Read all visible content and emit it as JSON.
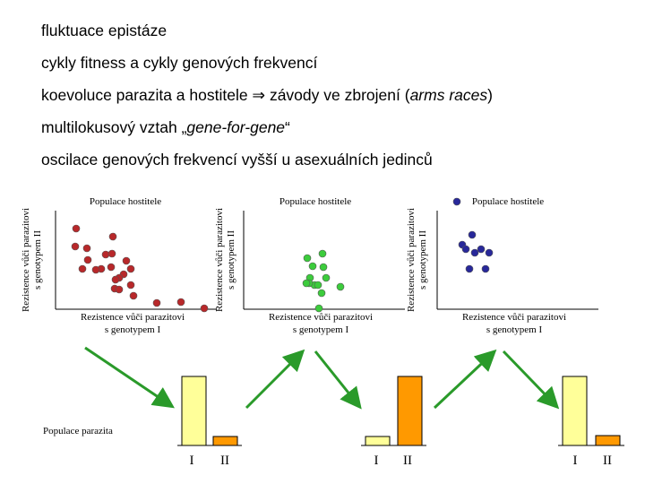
{
  "bullets": [
    [
      "fluktuace epistáze"
    ],
    [
      "cykly fitness a cykly genových frekvencí"
    ],
    [
      "koevoluce parazita a hostitele ⇒ závody ve zbrojení (",
      "arms races",
      ")"
    ],
    [
      "multilokusový vztah „",
      "gene-for-gene",
      "“"
    ],
    [
      "oscilace genových frekvencí vyšší u asexuálních jedinců"
    ]
  ],
  "panels": [
    {
      "title": "Populace hostitele",
      "y_label": [
        "Rezistence vůči parazitovi",
        "s genotypem II"
      ],
      "x_label": [
        "Rezistence vůči parazitovi",
        "s genotypem I"
      ],
      "bar_labels": [
        "I",
        "II"
      ]
    },
    {
      "title": "Populace hostitele",
      "y_label": [
        "Rezistence vůči parazitovi",
        "s genotypem II"
      ],
      "x_label": [
        "Rezistence vůči parazitovi",
        "s genotypem I"
      ],
      "bar_labels": [
        "I",
        "II"
      ]
    },
    {
      "title": "Populace hostitele",
      "y_label": [
        "Rezistence vůči parazitovi",
        "s genotypem II"
      ],
      "x_label": [
        "Rezistence vůči parazitovi",
        "s genotypem I"
      ],
      "bar_labels": [
        "I",
        "II"
      ]
    }
  ],
  "parasite_label": "Populace parazita"
}
